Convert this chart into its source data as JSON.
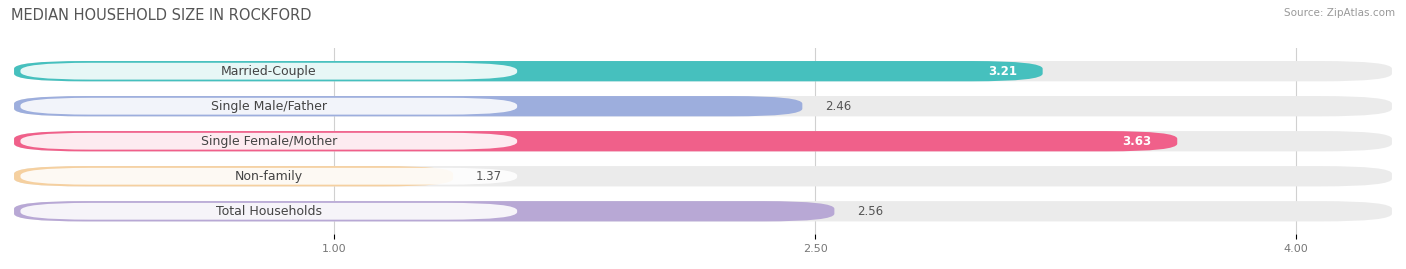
{
  "title": "MEDIAN HOUSEHOLD SIZE IN ROCKFORD",
  "source": "Source: ZipAtlas.com",
  "categories": [
    "Married-Couple",
    "Single Male/Father",
    "Single Female/Mother",
    "Non-family",
    "Total Households"
  ],
  "values": [
    3.21,
    2.46,
    3.63,
    1.37,
    2.56
  ],
  "bar_colors": [
    "#46c0be",
    "#9daedd",
    "#f0608a",
    "#f5d0a0",
    "#b8a8d5"
  ],
  "value_inside": [
    true,
    false,
    true,
    false,
    false
  ],
  "value_colors_inside": [
    "white",
    "#555555",
    "white",
    "#555555",
    "#555555"
  ],
  "background_color": "#ffffff",
  "bar_bg_color": "#ebebeb",
  "xlim": [
    0.0,
    4.3
  ],
  "xstart": 0.0,
  "xend": 4.3,
  "xticks": [
    1.0,
    2.5,
    4.0
  ],
  "xtick_labels": [
    "1.00",
    "2.50",
    "4.00"
  ],
  "value_fontsize": 8.5,
  "label_fontsize": 9,
  "title_fontsize": 10.5
}
